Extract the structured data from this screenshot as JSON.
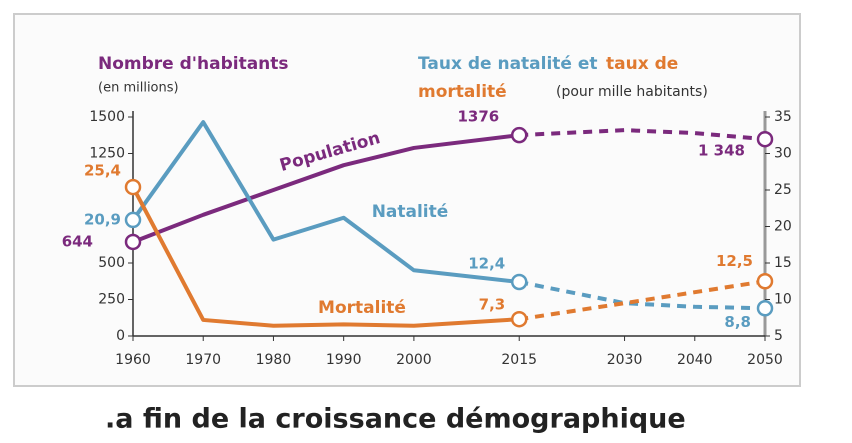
{
  "chart_data": {
    "type": "line",
    "y_label": "Nombre d'habitants",
    "y_sublabel": "(en millions)",
    "y2_label_parts": [
      "Taux de natalité et",
      "taux de",
      "mortalité",
      "(pour mille habitants)"
    ],
    "caption": ".a fin de la croissance démographique",
    "x": [
      1960,
      1970,
      1980,
      1990,
      2000,
      2015,
      2030,
      2040,
      2050
    ],
    "xlim": [
      1960,
      2050
    ],
    "xticks": [
      1960,
      1970,
      1980,
      1990,
      2000,
      2015,
      2030,
      2040,
      2050
    ],
    "ylim": [
      0,
      1500
    ],
    "yticks": [
      0,
      250,
      500,
      1250,
      1500
    ],
    "y2lim": [
      5,
      35
    ],
    "y2ticks": [
      5,
      10,
      15,
      20,
      25,
      30,
      35
    ],
    "dashed_from": 2015,
    "series": [
      {
        "name": "Population",
        "color": "#7b2a7d",
        "axis": "y",
        "values": [
          644,
          830,
          1000,
          1170,
          1288,
          1376,
          1410,
          1390,
          1348
        ],
        "value_labels": [
          "644",
          null,
          null,
          null,
          null,
          "1376",
          null,
          null,
          "1 348"
        ]
      },
      {
        "name": "Natalité",
        "color": "#5a9cc0",
        "axis": "y2",
        "values": [
          20.9,
          34.3,
          18.2,
          21.2,
          14,
          12.4,
          9.5,
          9,
          8.8
        ],
        "value_labels": [
          "20,9",
          null,
          null,
          null,
          null,
          "12,4",
          null,
          null,
          "8,8"
        ]
      },
      {
        "name": "Mortalité",
        "color": "#e07a30",
        "axis": "y2",
        "values": [
          25.4,
          7.2,
          6.4,
          6.6,
          6.4,
          7.3,
          9.5,
          11,
          12.5
        ],
        "value_labels": [
          "25,4",
          null,
          null,
          null,
          null,
          "7,3",
          null,
          null,
          "12,5"
        ]
      }
    ]
  }
}
